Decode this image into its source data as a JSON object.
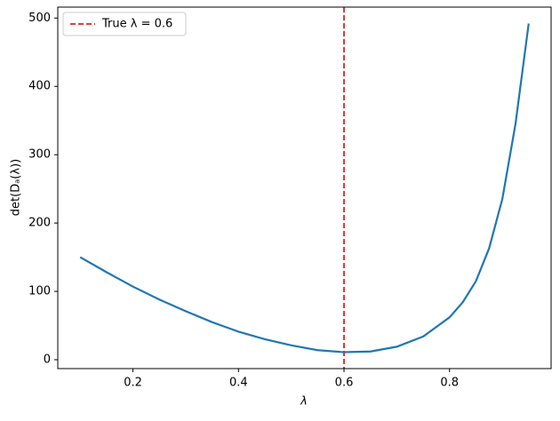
{
  "chart_data": {
    "type": "line",
    "x": [
      0.1,
      0.15,
      0.2,
      0.25,
      0.3,
      0.35,
      0.4,
      0.45,
      0.5,
      0.55,
      0.6,
      0.65,
      0.7,
      0.75,
      0.8,
      0.825,
      0.85,
      0.875,
      0.9,
      0.925,
      0.95
    ],
    "values": [
      150,
      128,
      107,
      88,
      71,
      55,
      41,
      30,
      21,
      14,
      11,
      12,
      19,
      34,
      62,
      84,
      115,
      163,
      235,
      345,
      492
    ],
    "color": "#1f77b4",
    "xlabel": "λ",
    "ylabel": "det(Dₐ(λ))",
    "xlim": [
      0.0575,
      0.9925
    ],
    "xticks": [
      0.2,
      0.4,
      0.6,
      0.8
    ],
    "ylim": [
      -13,
      516
    ],
    "yticks": [
      0,
      100,
      200,
      300,
      400,
      500
    ],
    "vline": {
      "x": 0.6,
      "label": "True λ = 0.6",
      "color": "#d62728"
    },
    "legend": "upper left"
  }
}
